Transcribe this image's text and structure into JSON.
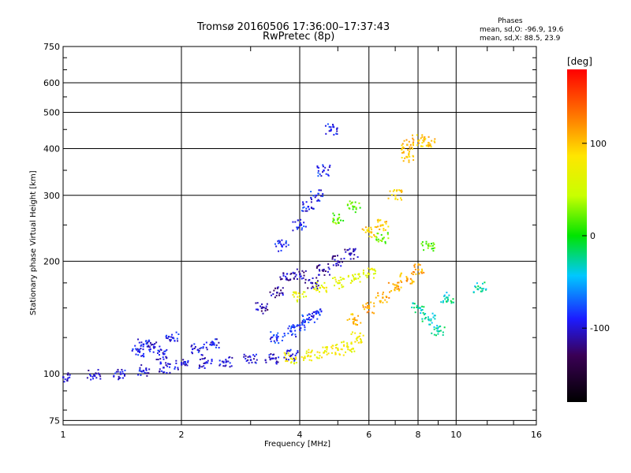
{
  "title": "Tromsø 20160506 17:36:00–17:37:43",
  "subtitle": "RwPretec (8p)",
  "stats": {
    "header": "Phases",
    "o_mode": "mean, sd,O:  -96.9, 19.6",
    "x_mode": "mean, sd,X:   88.5, 23.9"
  },
  "colorbar": {
    "unit_label": "[deg]",
    "ticks": [
      "100",
      "0",
      "-100"
    ],
    "tick_values": [
      100,
      0,
      -100
    ],
    "range": [
      -180,
      180
    ]
  },
  "chart_data": {
    "type": "scatter",
    "title": "Tromsø 20160506 17:36:00–17:37:43",
    "subtitle": "RwPretec (8p)",
    "xlabel": "Frequency [MHz]",
    "ylabel": "Stationary phase Virtual Height [km]",
    "x_scale": "log",
    "y_scale": "log",
    "xlim": [
      1,
      16
    ],
    "ylim": [
      73,
      750
    ],
    "x_ticks": [
      "1",
      "2",
      "4",
      "6",
      "8",
      "10",
      "16"
    ],
    "x_tick_values": [
      1,
      2,
      4,
      6,
      8,
      10,
      16
    ],
    "y_ticks": [
      "750",
      "600",
      "500",
      "400",
      "300",
      "200",
      "100",
      "75"
    ],
    "y_tick_values": [
      750,
      600,
      500,
      400,
      300,
      200,
      100,
      75
    ],
    "grid": true,
    "color_scale": "rainbow phase -180 to 180 deg",
    "point_groups": [
      {
        "mode": "O",
        "phase": -100,
        "x": [
          1.0,
          1.2,
          1.4,
          1.6,
          1.8,
          2.0,
          2.3,
          2.6,
          3.0,
          3.4,
          3.8
        ],
        "y": [
          98,
          99,
          100,
          102,
          104,
          106,
          107,
          108,
          109,
          110,
          112
        ]
      },
      {
        "mode": "O",
        "phase": -95,
        "x": [
          1.55,
          1.6,
          1.7,
          1.8,
          1.9,
          2.2,
          2.4
        ],
        "y": [
          115,
          120,
          118,
          113,
          125,
          116,
          120
        ]
      },
      {
        "mode": "O",
        "phase": -110,
        "x": [
          3.2,
          3.5,
          3.7,
          4.0,
          4.3,
          4.6,
          5.0,
          5.4
        ],
        "y": [
          150,
          165,
          180,
          185,
          175,
          190,
          200,
          210
        ]
      },
      {
        "mode": "O",
        "phase": -90,
        "x": [
          3.6,
          4.0,
          4.2,
          4.4,
          4.6,
          4.8
        ],
        "y": [
          220,
          250,
          280,
          300,
          350,
          450
        ]
      },
      {
        "mode": "O",
        "phase": -85,
        "x": [
          3.5,
          3.8,
          4.0,
          4.2,
          4.4
        ],
        "y": [
          125,
          130,
          135,
          140,
          145
        ]
      },
      {
        "mode": "X",
        "phase": 75,
        "x": [
          3.8,
          4.2,
          4.6,
          5.0,
          5.3,
          5.6
        ],
        "y": [
          110,
          112,
          114,
          116,
          118,
          125
        ]
      },
      {
        "mode": "X",
        "phase": 65,
        "x": [
          4.0,
          4.5,
          5.0,
          5.5,
          6.0
        ],
        "y": [
          160,
          170,
          175,
          180,
          185
        ]
      },
      {
        "mode": "X",
        "phase": 95,
        "x": [
          6.0,
          6.5,
          7.0,
          7.5
        ],
        "y": [
          240,
          250,
          300,
          380
        ]
      },
      {
        "mode": "X",
        "phase": 110,
        "x": [
          5.5,
          6.0,
          6.5,
          7.0,
          7.5,
          8.0
        ],
        "y": [
          140,
          150,
          160,
          170,
          180,
          190
        ]
      },
      {
        "mode": "X",
        "phase": 20,
        "x": [
          5.0,
          5.5,
          6.5,
          8.5
        ],
        "y": [
          260,
          280,
          230,
          220
        ]
      },
      {
        "mode": "X",
        "phase": 100,
        "x": [
          7.5,
          8.0,
          8.5
        ],
        "y": [
          410,
          420,
          415
        ]
      },
      {
        "mode": "X",
        "phase": -30,
        "x": [
          8.0,
          8.5,
          9.0,
          9.5,
          11.5
        ],
        "y": [
          150,
          140,
          130,
          160,
          170
        ]
      }
    ]
  }
}
